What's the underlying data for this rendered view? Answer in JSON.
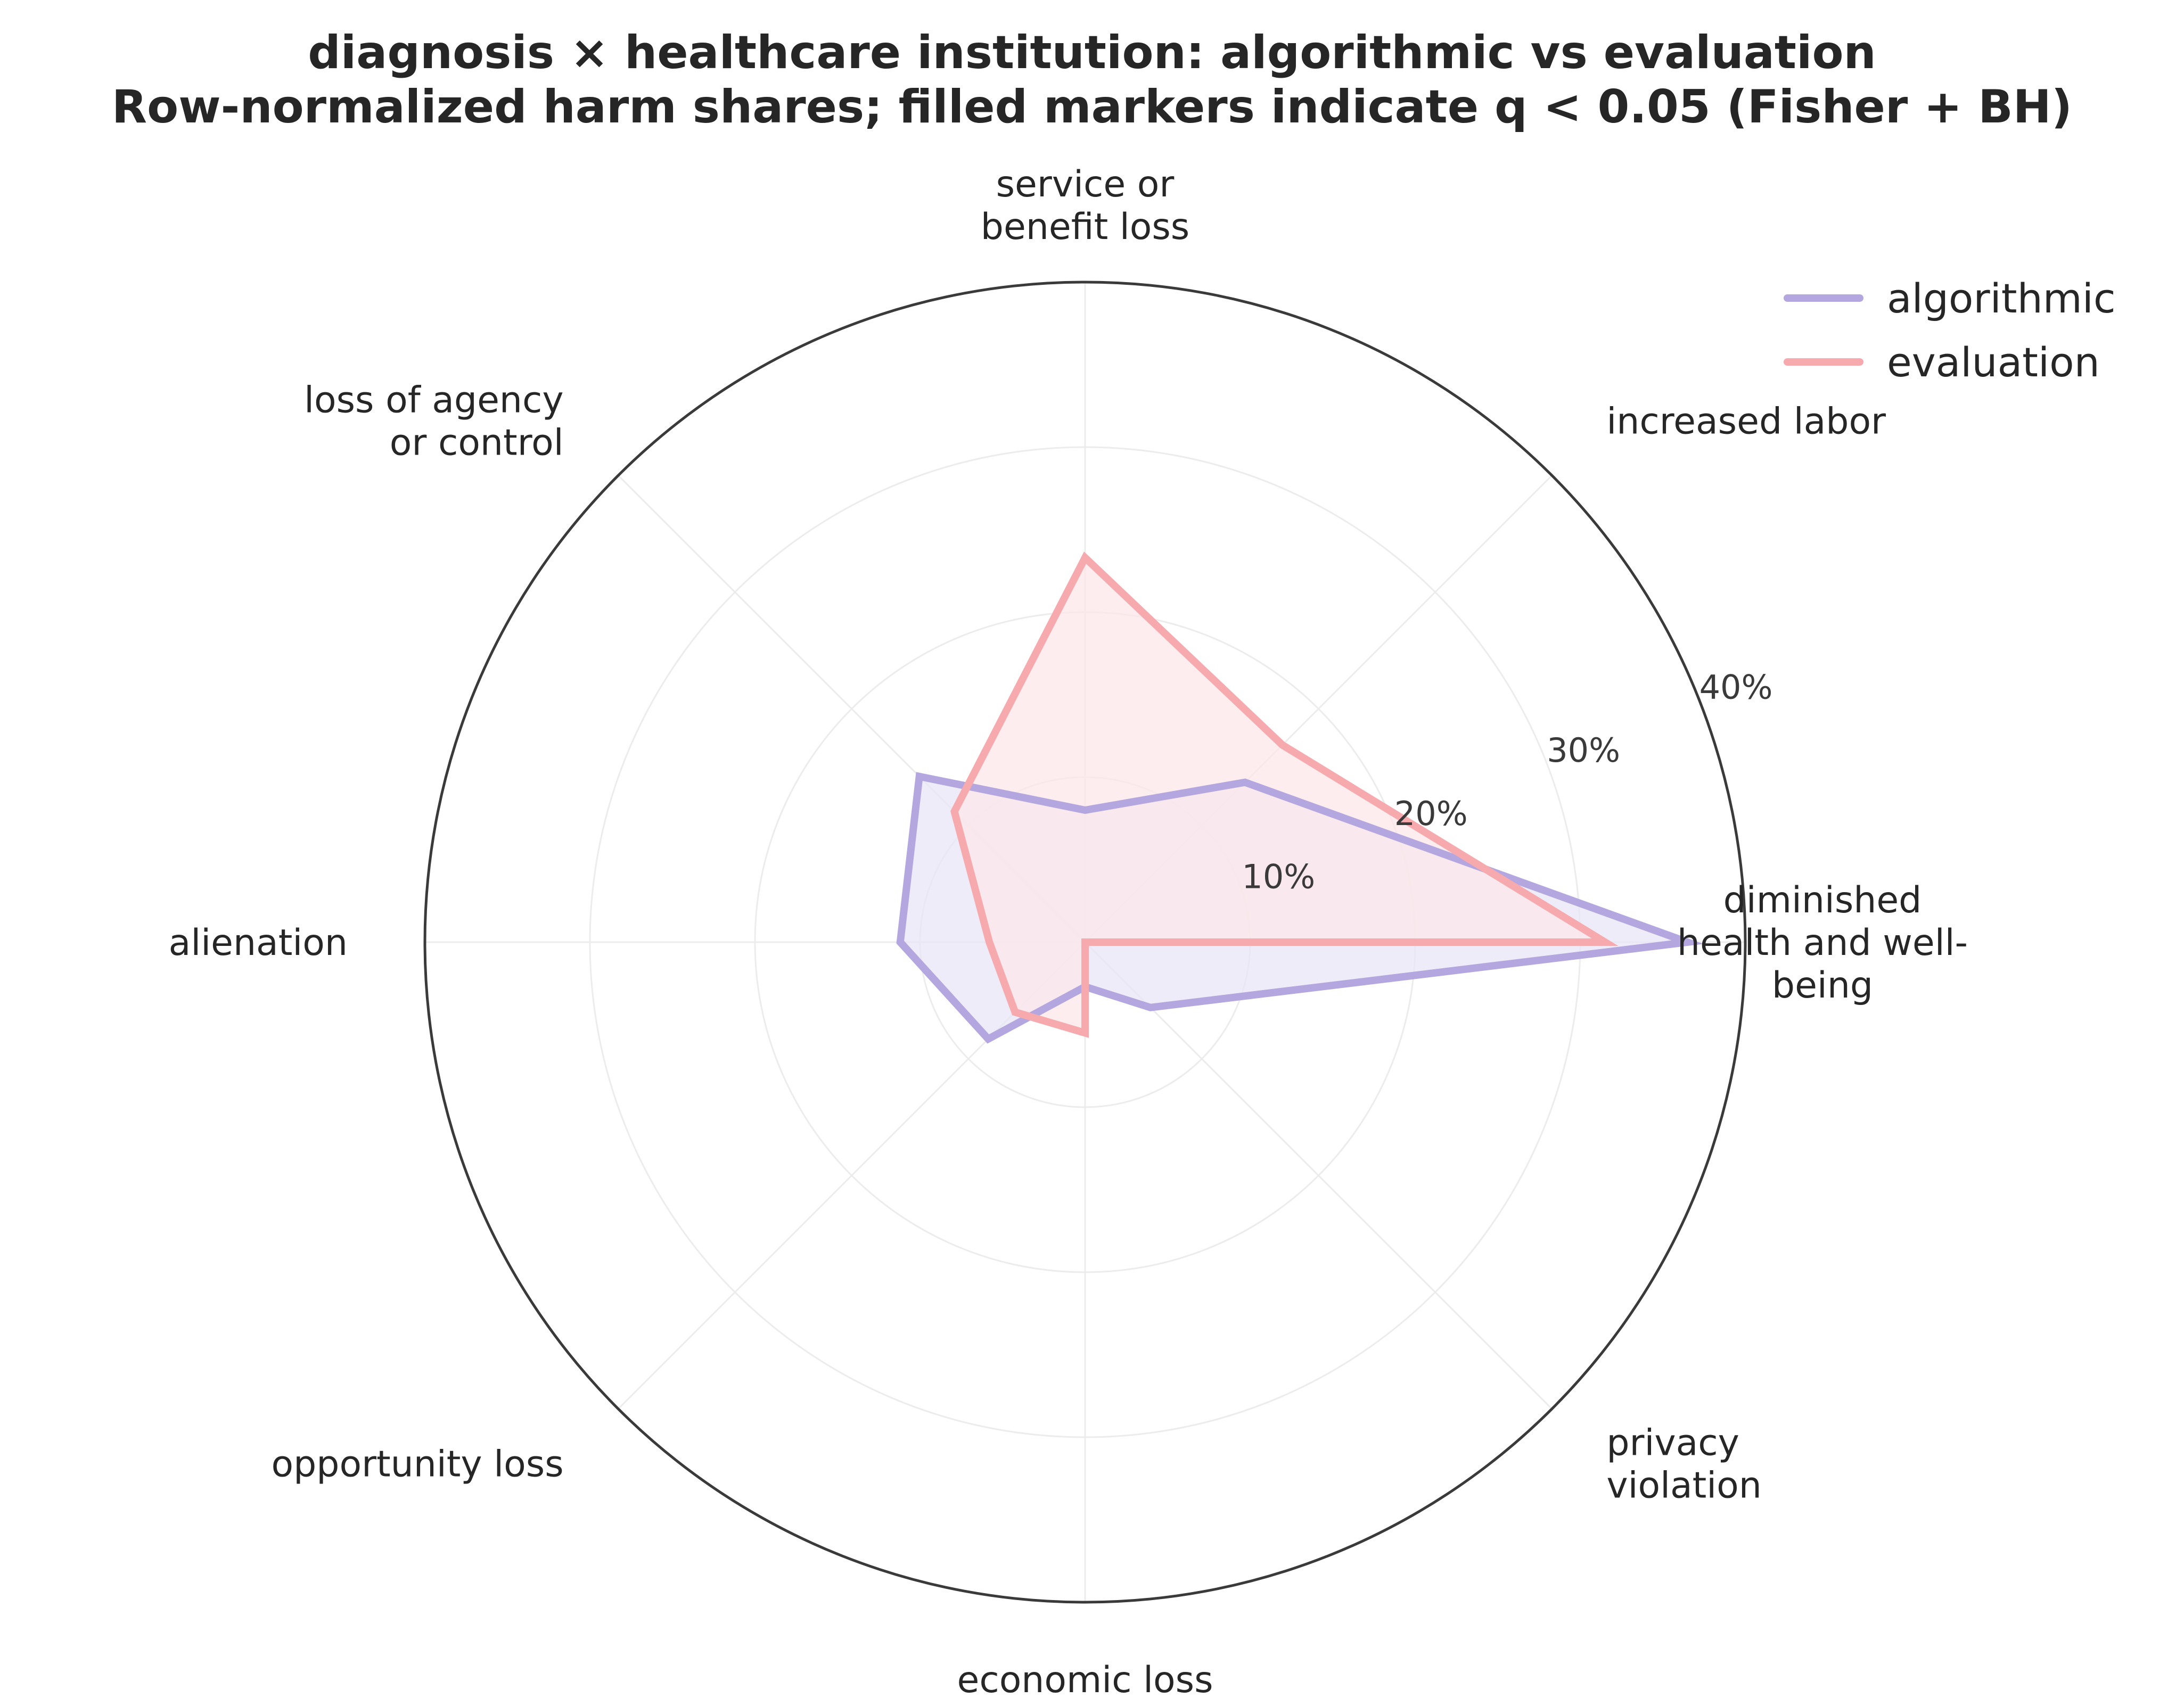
{
  "chart_data": {
    "type": "radar",
    "title_lines": [
      "diagnosis × healthcare institution: algorithmic vs evaluation",
      "Row-normalized harm shares; filled markers indicate q < 0.05 (Fisher + BH)"
    ],
    "categories": [
      {
        "lines": [
          "diminished",
          "health and well-",
          "being"
        ]
      },
      {
        "lines": [
          "increased labor"
        ]
      },
      {
        "lines": [
          "service or",
          "benefit loss"
        ]
      },
      {
        "lines": [
          "loss of agency",
          "or control"
        ]
      },
      {
        "lines": [
          "alienation"
        ]
      },
      {
        "lines": [
          "opportunity loss"
        ]
      },
      {
        "lines": [
          "economic loss"
        ]
      },
      {
        "lines": [
          "privacy",
          "violation"
        ]
      }
    ],
    "r_max": 40,
    "r_ticks": [
      10,
      20,
      30,
      40
    ],
    "r_tick_labels": [
      "10%",
      "20%",
      "30%",
      "40%"
    ],
    "grid": true,
    "legend_position": "top-right",
    "series": [
      {
        "name": "algorithmic",
        "color": "#b4a7e0",
        "fill": "#e9e5f7",
        "values": [
          36.5,
          13.7,
          8.0,
          14.2,
          11.2,
          8.3,
          2.7,
          5.6
        ]
      },
      {
        "name": "evaluation",
        "color": "#f6aaae",
        "fill": "#fce7e8",
        "values": [
          31.5,
          16.9,
          23.3,
          11.2,
          5.8,
          6.0,
          5.5,
          0.0
        ]
      }
    ]
  }
}
